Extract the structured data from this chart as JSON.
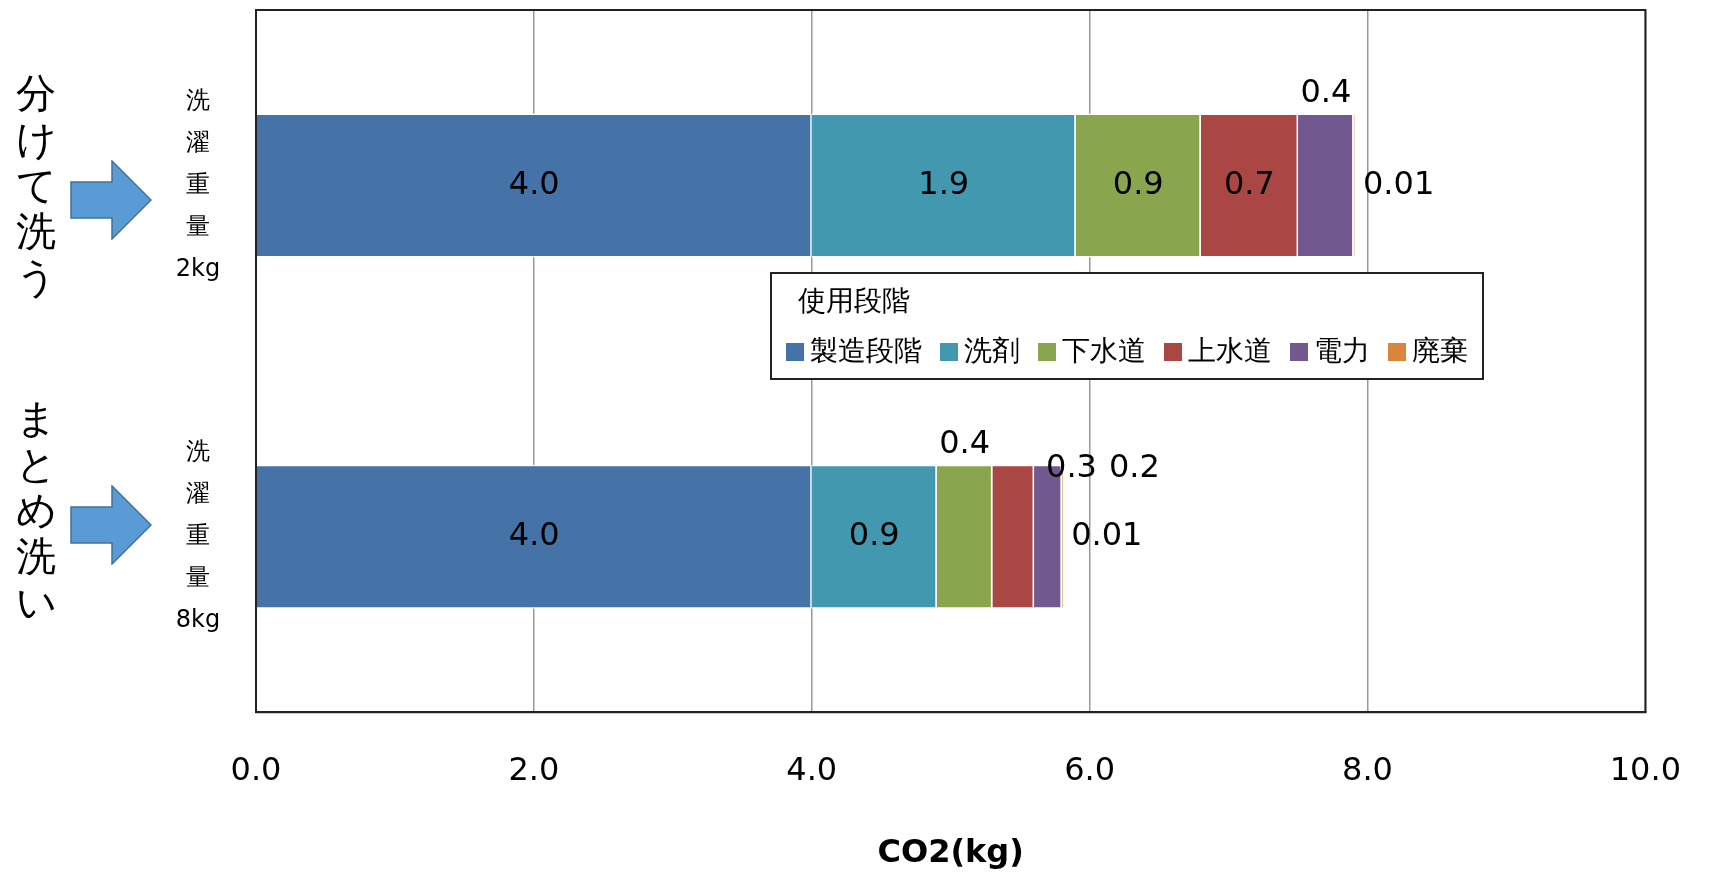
{
  "chart_data": {
    "type": "bar",
    "orientation": "horizontal",
    "stacked": true,
    "categories": [
      "洗濯重量2kg",
      "洗濯重量8kg"
    ],
    "series": [
      {
        "name": "製造段階",
        "color": "#4572a7",
        "values": [
          4.0,
          4.0
        ],
        "value_labels": [
          "4.0",
          "4.0"
        ]
      },
      {
        "name": "洗剤",
        "color": "#4198af",
        "values": [
          1.9,
          0.9
        ],
        "value_labels": [
          "1.9",
          "0.9"
        ]
      },
      {
        "name": "下水道",
        "color": "#89a54e",
        "values": [
          0.9,
          0.4
        ],
        "value_labels": [
          "0.9",
          "0.4"
        ]
      },
      {
        "name": "上水道",
        "color": "#aa4643",
        "values": [
          0.7,
          0.3
        ],
        "value_labels": [
          "0.7",
          "0.3"
        ]
      },
      {
        "name": "電力",
        "color": "#71588f",
        "values": [
          0.4,
          0.2
        ],
        "value_labels": [
          "0.4",
          "0.2"
        ]
      },
      {
        "name": "廃棄",
        "color": "#db843d",
        "values": [
          0.01,
          0.01
        ],
        "value_labels": [
          "0.01",
          "0.01"
        ]
      }
    ],
    "xlabel": "CO2(kg)",
    "legend_title": "使用段階",
    "legend": "center",
    "xlim": [
      0,
      10
    ],
    "xticks": [
      {
        "value": 0,
        "label": "0.0"
      },
      {
        "value": 2,
        "label": "2.0"
      },
      {
        "value": 4,
        "label": "4.0"
      },
      {
        "value": 6,
        "label": "6.0"
      },
      {
        "value": 8,
        "label": "8.0"
      },
      {
        "value": 10,
        "label": "10.0"
      }
    ],
    "grid": "x",
    "annotations": [
      "分けて洗う",
      "まとめ洗い"
    ]
  }
}
